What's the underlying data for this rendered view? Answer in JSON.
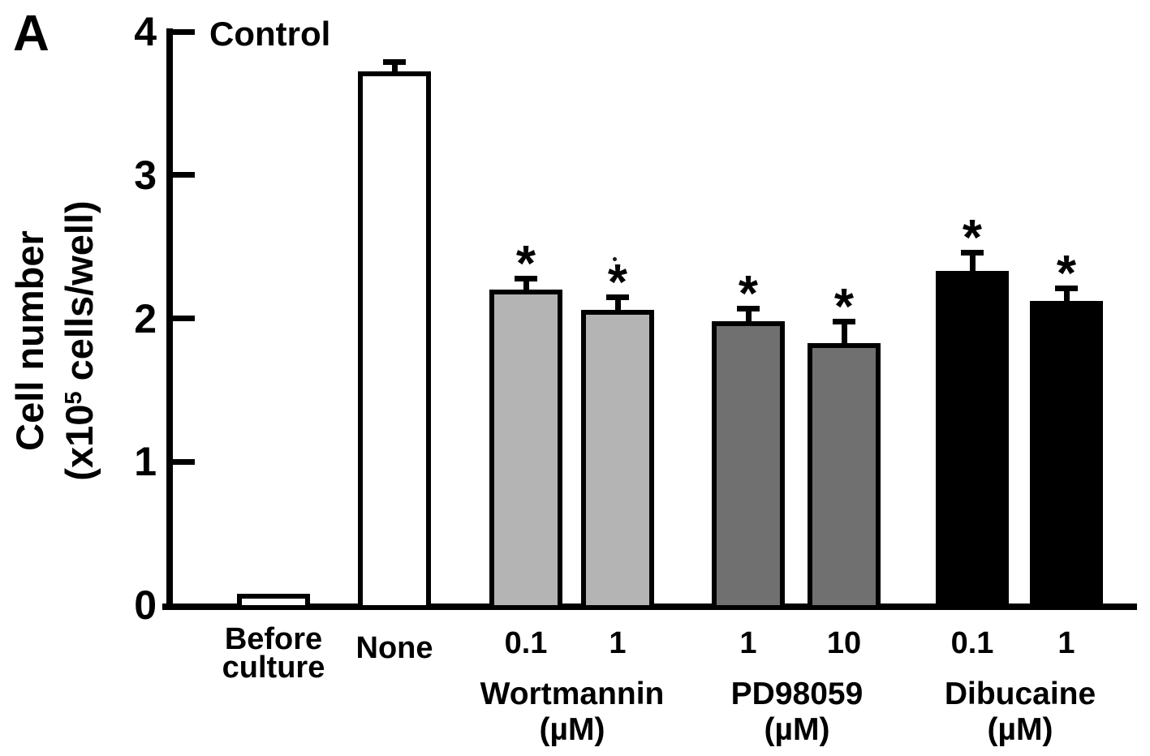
{
  "panel_label": "A",
  "chart_data": {
    "type": "bar",
    "title": "Control",
    "ylabel_line1": "Cell number",
    "ylabel_line2_pre": "(x10",
    "ylabel_line2_sup": "5",
    "ylabel_line2_post": " cells/well)",
    "ylabel_full": "Cell number (x10^5 cells/well)",
    "ylim": [
      0,
      4
    ],
    "yticks": [
      0,
      1,
      2,
      3,
      4
    ],
    "grid": false,
    "legend": "none",
    "sig_marker": "*",
    "axis_color": "#000000",
    "bars": [
      {
        "label": "Before\nculture",
        "group": "",
        "value": 0.08,
        "error": 0,
        "color": "#ffffff",
        "significant": false
      },
      {
        "label": "None",
        "group": "",
        "value": 3.72,
        "error": 0.07,
        "color": "#ffffff",
        "significant": false
      },
      {
        "label": "0.1",
        "group": "Wortmannin",
        "value": 2.2,
        "error": 0.08,
        "color": "#b4b4b4",
        "significant": true
      },
      {
        "label": "1",
        "group": "Wortmannin",
        "value": 2.06,
        "error": 0.09,
        "color": "#b4b4b4",
        "significant": true
      },
      {
        "label": "1",
        "group": "PD98059",
        "value": 1.98,
        "error": 0.09,
        "color": "#707070",
        "significant": true
      },
      {
        "label": "10",
        "group": "PD98059",
        "value": 1.83,
        "error": 0.15,
        "color": "#707070",
        "significant": true
      },
      {
        "label": "0.1",
        "group": "Dibucaine",
        "value": 2.33,
        "error": 0.13,
        "color": "#000000",
        "significant": true
      },
      {
        "label": "1",
        "group": "Dibucaine",
        "value": 2.12,
        "error": 0.09,
        "color": "#000000",
        "significant": true
      }
    ],
    "group_labels": [
      {
        "name": "Wortmannin",
        "unit": "(µM)"
      },
      {
        "name": "PD98059",
        "unit": "(µM)"
      },
      {
        "name": "Dibucaine",
        "unit": "(µM)"
      }
    ]
  }
}
